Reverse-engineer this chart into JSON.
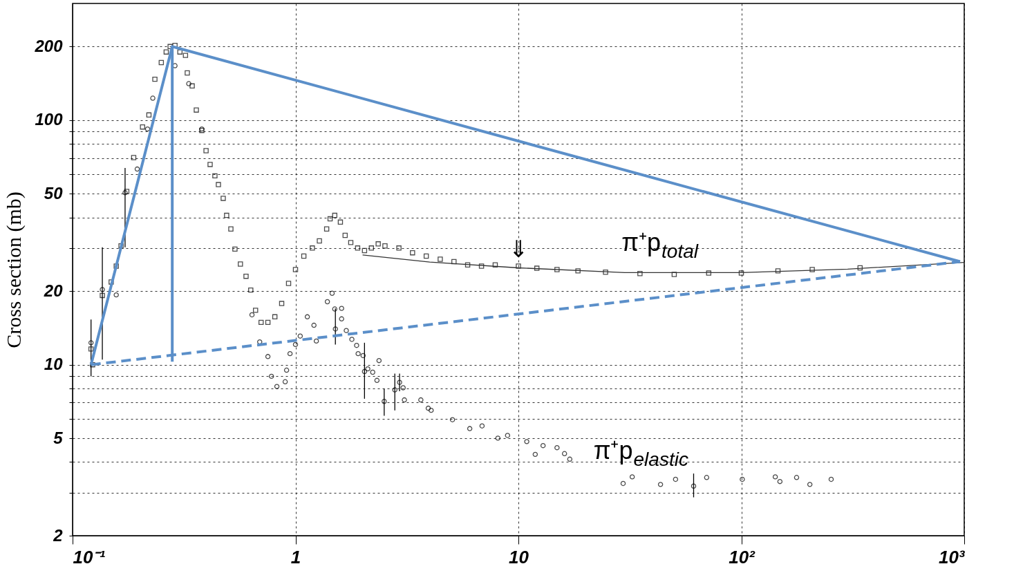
{
  "chart_data": {
    "type": "scatter",
    "ylabel": "Cross section (mb)",
    "log": "xy",
    "grid": true,
    "xlim": [
      0.1,
      1000
    ],
    "xticks": [
      {
        "value": 0.1,
        "label": "10⁻¹"
      },
      1,
      10,
      {
        "value": 100,
        "label": "10²"
      },
      {
        "value": 1000,
        "label": "10³"
      }
    ],
    "ylim": [
      2,
      300
    ],
    "yticks": [
      2,
      {
        "value": 3,
        "label": null
      },
      {
        "value": 4,
        "label": null
      },
      5,
      {
        "value": 6,
        "label": null
      },
      {
        "value": 7,
        "label": null
      },
      {
        "value": 8,
        "label": null
      },
      {
        "value": 9,
        "label": null
      },
      10,
      20,
      {
        "value": 30,
        "label": null
      },
      {
        "value": 40,
        "label": null
      },
      50,
      {
        "value": 60,
        "label": null
      },
      {
        "value": 70,
        "label": null
      },
      {
        "value": 80,
        "label": null
      },
      {
        "value": 90,
        "label": null
      },
      100,
      200
    ],
    "annotations": [
      {
        "text": "⇓",
        "x": 10,
        "y": 25.3
      }
    ],
    "series": [
      {
        "name": "π⁺p$_{total}$",
        "marker": "square",
        "color": "#000000",
        "x": [
          0.121,
          0.123,
          0.136,
          0.149,
          0.157,
          0.165,
          0.175,
          0.188,
          0.206,
          0.22,
          0.234,
          0.25,
          0.263,
          0.274,
          0.288,
          0.303,
          0.321,
          0.327,
          0.344,
          0.359,
          0.38,
          0.397,
          0.414,
          0.435,
          0.451,
          0.474,
          0.491,
          0.513,
          0.535,
          0.566,
          0.6,
          0.63,
          0.662,
          0.701,
          0.752,
          0.808,
          0.867,
          0.931,
          1.0,
          1.09,
          1.19,
          1.28,
          1.38,
          1.43,
          1.5,
          1.59,
          1.67,
          1.77,
          1.9,
          2.04,
          2.19,
          2.35,
          2.52,
          2.91,
          3.35,
          3.86,
          4.46,
          5.14,
          5.92,
          6.83,
          7.87,
          10,
          12.1,
          14.9,
          18.5,
          24.6,
          35.1,
          50,
          71.4,
          100,
          146,
          208,
          341
        ],
        "values": [
          11.6,
          10,
          19.2,
          21.8,
          25.3,
          30.6,
          51.1,
          70.3,
          93.8,
          105,
          147,
          172,
          190,
          200,
          202,
          190,
          184,
          156,
          138,
          110,
          90.8,
          75,
          65.9,
          59.2,
          54.5,
          47.9,
          40.8,
          35.9,
          29.7,
          25.8,
          23,
          20.2,
          16.7,
          14.9,
          14.9,
          15.7,
          17.8,
          21.5,
          24.5,
          27.8,
          30,
          32.1,
          35.9,
          39.5,
          40.8,
          38.3,
          33.8,
          31.6,
          30,
          29.3,
          30,
          31.2,
          30.6,
          30,
          28.7,
          27.8,
          27,
          26.4,
          25.6,
          25.3,
          25.6,
          25.3,
          24.8,
          24.5,
          24.2,
          23.9,
          23.6,
          23.4,
          23.7,
          23.7,
          24.2,
          24.5,
          24.9
        ]
      },
      {
        "name": "π⁺p$_{elastic}$",
        "marker": "circle",
        "color": "#000000",
        "x": [
          0.121,
          0.136,
          0.157,
          0.172,
          0.195,
          0.217,
          0.229,
          0.288,
          0.332,
          0.38,
          0.638,
          0.691,
          0.752,
          0.78,
          0.825,
          0.899,
          0.912,
          0.945,
          1.0,
          1.05,
          1.13,
          1.21,
          1.24,
          1.39,
          1.46,
          1.5,
          1.51,
          1.61,
          1.61,
          1.69,
          1.79,
          1.88,
          1.91,
          2.01,
          2.04,
          2.11,
          2.22,
          2.32,
          2.37,
          2.5,
          2.79,
          2.93,
          3.04,
          3.08,
          3.65,
          3.94,
          4.06,
          5.06,
          6.05,
          6.87,
          8.09,
          8.94,
          10.9,
          11.9,
          12.9,
          14.9,
          16.1,
          17.0,
          29.5,
          32.4,
          43.4,
          50.7,
          61.1,
          69.9,
          101,
          142,
          149,
          177,
          203,
          253
        ],
        "values": [
          12.3,
          20.3,
          19.3,
          50.5,
          63.1,
          92,
          123,
          167,
          141,
          92,
          16,
          12.4,
          10.8,
          8.97,
          8.15,
          8.52,
          9.5,
          11.1,
          12.1,
          13.1,
          15.7,
          14.5,
          12.5,
          18.1,
          19.6,
          16.9,
          14,
          17,
          15.4,
          13.8,
          12.7,
          12,
          11.1,
          10.9,
          9.38,
          9.62,
          9.32,
          8.63,
          10.4,
          7.08,
          7.89,
          8.47,
          8.05,
          7.18,
          7.18,
          6.64,
          6.51,
          5.96,
          5.48,
          5.62,
          5.01,
          5.14,
          4.85,
          4.3,
          4.67,
          4.58,
          4.33,
          4.11,
          3.27,
          3.48,
          3.24,
          3.4,
          3.19,
          3.46,
          3.4,
          3.48,
          3.33,
          3.46,
          3.24,
          3.4
        ],
        "errors": [
          [
            8.97,
            15.3
          ],
          [
            10.5,
            30.2
          ],
          null,
          [
            30.2,
            63.8
          ],
          null,
          null,
          null,
          null,
          null,
          null,
          null,
          null,
          null,
          null,
          null,
          null,
          null,
          null,
          null,
          null,
          null,
          null,
          null,
          null,
          null,
          null,
          [
            12.1,
            17
          ],
          null,
          null,
          null,
          null,
          null,
          null,
          null,
          [
            7.26,
            12.3
          ],
          null,
          null,
          null,
          null,
          [
            6.19,
            7.99
          ],
          [
            6.51,
            9.2
          ],
          [
            7.79,
            9.2
          ],
          null,
          null,
          null,
          null,
          null,
          null,
          null,
          null,
          null,
          null,
          null,
          null,
          null,
          null,
          null,
          null,
          null,
          null,
          null,
          null,
          [
            2.87,
            3.59
          ],
          null,
          null,
          null,
          null,
          null,
          null,
          null
        ]
      },
      {
        "type": "line",
        "color": "#333333",
        "line_style": "solid",
        "x": [
          2,
          4,
          10,
          30,
          100,
          300,
          1000
        ],
        "values": [
          28.1,
          26.3,
          24.9,
          23.8,
          23.8,
          24.6,
          26.2
        ]
      },
      {
        "type": "line",
        "color": "#5b8fc9",
        "line_style": "solid",
        "x": [
          0.121,
          0.28,
          958
        ],
        "values": [
          10,
          200,
          26.4
        ]
      },
      {
        "type": "line",
        "color": "#5b8fc9",
        "line_style": "solid",
        "x": [
          0.28,
          0.28
        ],
        "values": [
          200,
          10.3
        ]
      },
      {
        "type": "line",
        "color": "#5b8fc9",
        "line_style": "dashed",
        "x": [
          0.121,
          958
        ],
        "values": [
          10,
          26.4
        ]
      }
    ]
  }
}
